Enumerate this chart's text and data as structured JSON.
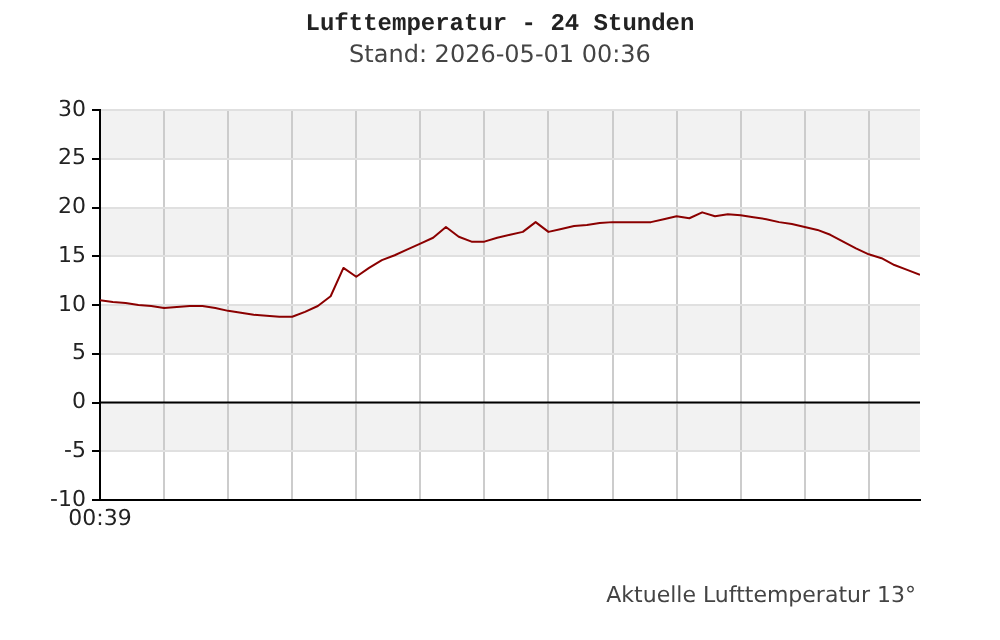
{
  "chart_data": {
    "type": "line",
    "title": "Lufttemperatur - 24 Stunden",
    "subtitle": "Stand: 2026-05-01 00:36",
    "annotations": [
      "Aktuelle Lufttemperatur 13°"
    ],
    "categories": [
      "00:39",
      null,
      null,
      null,
      null,
      null,
      null,
      null,
      null,
      null,
      null,
      null,
      null,
      null,
      null,
      null,
      null,
      null,
      null,
      null,
      null,
      null,
      null,
      null,
      null,
      null,
      null,
      null,
      null,
      null,
      null,
      null,
      null,
      null,
      null,
      null,
      null,
      null,
      null,
      null,
      null,
      null,
      null,
      null,
      null,
      null,
      null,
      null,
      null,
      null,
      null,
      null,
      null,
      null,
      null,
      null,
      null,
      null,
      null,
      null,
      null,
      null,
      null,
      null,
      null
    ],
    "series": [
      {
        "color": "#8b0000",
        "values": [
          10.5,
          10.3,
          10.2,
          10.0,
          9.9,
          9.7,
          9.8,
          9.9,
          9.9,
          9.7,
          9.4,
          9.2,
          9.0,
          8.9,
          8.8,
          8.8,
          9.3,
          9.9,
          10.9,
          13.8,
          12.9,
          13.8,
          14.6,
          15.1,
          15.7,
          16.3,
          16.9,
          18.0,
          17.0,
          16.5,
          16.5,
          16.9,
          17.2,
          17.5,
          18.5,
          17.5,
          17.8,
          18.1,
          18.2,
          18.4,
          18.5,
          18.5,
          18.5,
          18.5,
          18.8,
          19.1,
          18.9,
          19.5,
          19.1,
          19.3,
          19.2,
          19.0,
          18.8,
          18.5,
          18.3,
          18.0,
          17.7,
          17.2,
          16.5,
          15.8,
          15.2,
          14.8,
          14.1,
          13.6,
          13.1
        ]
      }
    ],
    "ylim": [
      -10,
      30
    ],
    "yticks": [
      -10,
      -5,
      0,
      5,
      10,
      15,
      20,
      25,
      30
    ],
    "grid": true,
    "marker": "none",
    "line_style": "solid",
    "legend": false,
    "ref_lines": [
      {
        "axis": "y",
        "value": 0,
        "color": "#000000"
      }
    ],
    "bands": [
      {
        "axis": "y",
        "from": 25,
        "to": 30,
        "color": "#f2f2f2"
      },
      {
        "axis": "y",
        "from": 15,
        "to": 20,
        "color": "#f2f2f2"
      },
      {
        "axis": "y",
        "from": 5,
        "to": 10,
        "color": "#f2f2f2"
      },
      {
        "axis": "y",
        "from": -5,
        "to": 0,
        "color": "#f2f2f2"
      }
    ]
  }
}
